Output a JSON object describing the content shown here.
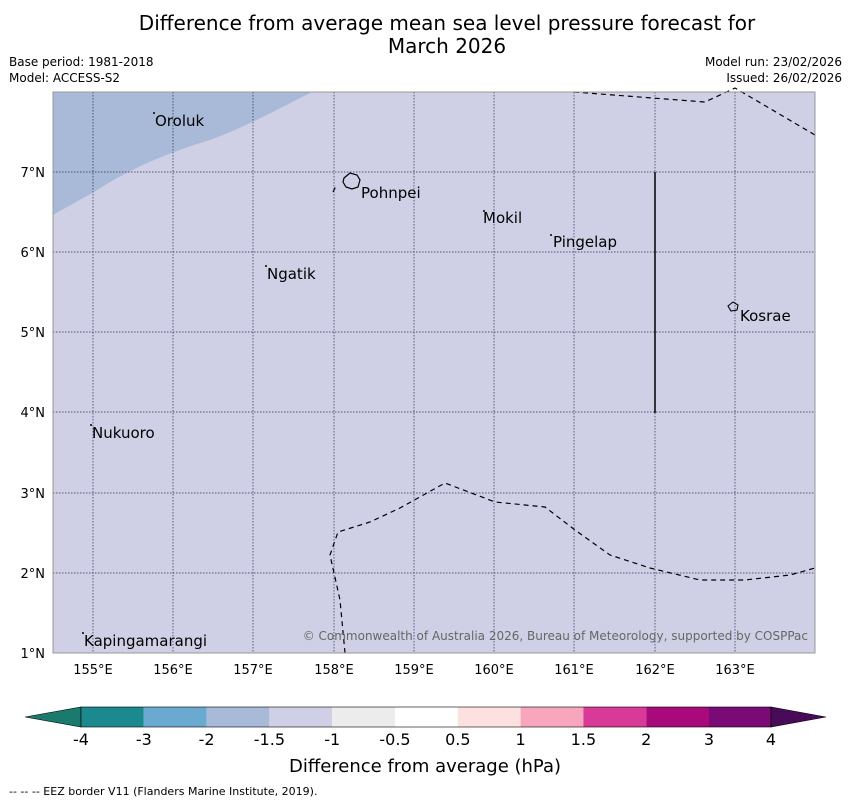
{
  "header": {
    "title_line1": "Difference from average mean sea level pressure forecast for",
    "title_line2": "March 2026",
    "base_period": "Base period: 1981-2018",
    "model": "Model: ACCESS-S2",
    "model_run": "Model run: 23/02/2026",
    "issued": "Issued: 26/02/2026"
  },
  "map": {
    "lon_range": [
      154.5,
      164.0
    ],
    "lat_range": [
      1.0,
      8.0
    ],
    "lon_ticks": [
      "155°E",
      "156°E",
      "157°E",
      "158°E",
      "159°E",
      "160°E",
      "161°E",
      "162°E",
      "163°E"
    ],
    "lat_ticks": [
      "7°N",
      "6°N",
      "5°N",
      "4°N",
      "3°N",
      "2°N",
      "1°N"
    ],
    "background_color": "#cfd0e5",
    "shaded_region_color": "#a8bad7",
    "places": [
      {
        "name": "Oroluk",
        "lon": 155.5,
        "lat": 7.6
      },
      {
        "name": "Pohnpei",
        "lon": 158.2,
        "lat": 6.85
      },
      {
        "name": "Mokil",
        "lon": 159.8,
        "lat": 6.4
      },
      {
        "name": "Pingelap",
        "lon": 160.7,
        "lat": 6.2
      },
      {
        "name": "Ngatik",
        "lon": 157.1,
        "lat": 5.8
      },
      {
        "name": "Kosrae",
        "lon": 163.0,
        "lat": 5.3
      },
      {
        "name": "Nukuoro",
        "lon": 155.0,
        "lat": 3.85
      },
      {
        "name": "Kapingamarangi",
        "lon": 154.9,
        "lat": 1.25
      }
    ],
    "copyright": "© Commonwealth of Australia 2026, Bureau of Meteorology, supported by COSPPac"
  },
  "legend": {
    "label": "Difference from average (hPa)",
    "ticks": [
      "-4",
      "-3",
      "-2",
      "-1.5",
      "-1",
      "-0.5",
      "0.5",
      "1",
      "1.5",
      "2",
      "3",
      "4"
    ],
    "colors": [
      "#1b8a8e",
      "#2e9aa3",
      "#6baad0",
      "#a8bad7",
      "#cfd0e5",
      "#ececec",
      "#ffffff",
      "#fde0e0",
      "#f7a6bd",
      "#d93a98",
      "#a80a7c",
      "#790a76",
      "#4a0a5a"
    ]
  },
  "footer": {
    "eez_text": "--  --  -- EEZ border V11 (Flanders Marine Institute, 2019)."
  }
}
